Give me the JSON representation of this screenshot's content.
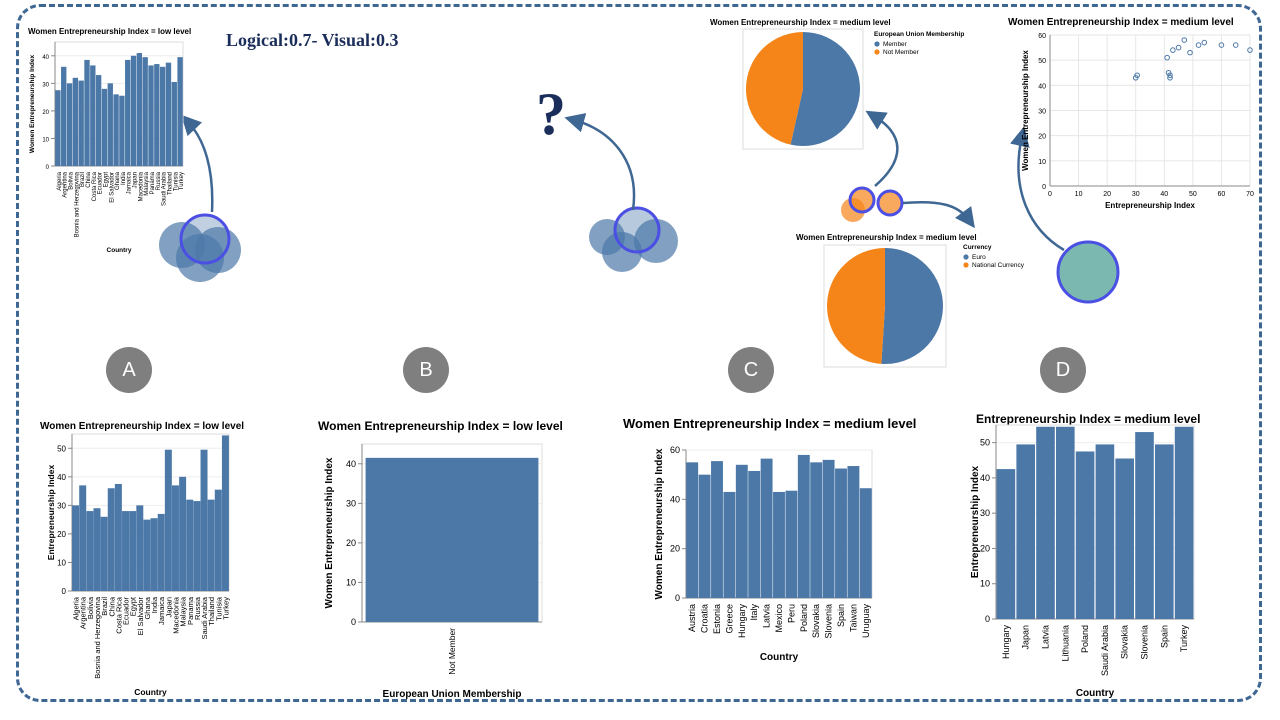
{
  "heading": "Logical:0.7-  Visual:0.3",
  "question_mark": "?",
  "letters": [
    "A",
    "B",
    "C",
    "D"
  ],
  "colors": {
    "bar": "#4c78a8",
    "orange": "#f58518",
    "frame": "#3f6793",
    "arrow": "#3f6793",
    "teal": "#7ab8b0"
  },
  "chart_data": [
    {
      "id": "top_a_bar",
      "type": "bar",
      "title": "Women Entrepreneurship Index = low level",
      "xlabel": "Country",
      "ylabel": "Women Entrepreneurship Index",
      "ylim": [
        0,
        45
      ],
      "yticks": [
        0,
        10,
        20,
        30,
        40
      ],
      "categories": [
        "Algeria",
        "Argentina",
        "Bolivia",
        "Bosnia and Herzegovina",
        "Brazil",
        "China",
        "Costa Rica",
        "Ecuador",
        "Egypt",
        "El Salvador",
        "Ghana",
        "India",
        "Jamaica",
        "Japan",
        "Macedonia",
        "Malaysia",
        "Panama",
        "Russia",
        "Saudi Arabia",
        "Thailand",
        "Tunisia",
        "Turkey"
      ],
      "values": [
        27.5,
        36,
        30,
        32,
        31,
        38.5,
        36.5,
        33,
        28,
        30,
        26,
        25.5,
        38.5,
        40,
        41,
        39.5,
        36.5,
        37,
        36,
        37.5,
        30.5,
        39.5
      ]
    },
    {
      "id": "top_c_pie_eu",
      "type": "pie",
      "title": "Women Entrepreneurship Index = medium level",
      "legend_title": "European Union Membership",
      "labels": [
        "Member",
        "Not Member"
      ],
      "values": [
        53.5,
        46.5
      ],
      "colors": [
        "#4c78a8",
        "#f58518"
      ]
    },
    {
      "id": "top_c_pie_currency",
      "type": "pie",
      "title": "Women Entrepreneurship Index = medium level",
      "legend_title": "Currency",
      "labels": [
        "Euro",
        "National Currency"
      ],
      "values": [
        51,
        49
      ],
      "colors": [
        "#4c78a8",
        "#f58518"
      ]
    },
    {
      "id": "top_d_scatter",
      "type": "scatter",
      "title": "Women Entrepreneurship Index = medium level",
      "xlabel": "Entrepreneurship Index",
      "ylabel": "Women Entrepreneurship Index",
      "xlim": [
        0,
        70
      ],
      "ylim": [
        0,
        60
      ],
      "xticks": [
        0,
        10,
        20,
        30,
        40,
        50,
        60,
        70
      ],
      "yticks": [
        0,
        10,
        20,
        30,
        40,
        50,
        60
      ],
      "points": [
        [
          30,
          43
        ],
        [
          30.5,
          44
        ],
        [
          41,
          51
        ],
        [
          41.5,
          45
        ],
        [
          42,
          44
        ],
        [
          42,
          43
        ],
        [
          43,
          54
        ],
        [
          45,
          55
        ],
        [
          47,
          58
        ],
        [
          49,
          53
        ],
        [
          52,
          56
        ],
        [
          54,
          57
        ],
        [
          60,
          56
        ],
        [
          65,
          56
        ],
        [
          70,
          54
        ]
      ]
    },
    {
      "id": "option_a_bar",
      "type": "bar",
      "title": "Women Entrepreneurship Index = low level",
      "xlabel": "Country",
      "ylabel": "Entrepreneurship Index",
      "ylim": [
        0,
        55
      ],
      "yticks": [
        0,
        10,
        20,
        30,
        40,
        50
      ],
      "categories": [
        "Algeria",
        "Argentina",
        "Bolivia",
        "Bosnia and Herzegovina",
        "Brazil",
        "China",
        "Costa Rica",
        "Ecuador",
        "Egypt",
        "El Salvador",
        "Ghana",
        "India",
        "Jamaica",
        "Japan",
        "Macedonia",
        "Malaysia",
        "Panama",
        "Russia",
        "Saudi Arabia",
        "Thailand",
        "Tunisia",
        "Turkey"
      ],
      "values": [
        30,
        37,
        28,
        29,
        26,
        36,
        37.5,
        28,
        28,
        30,
        25,
        25.5,
        27,
        49.5,
        37,
        40,
        32,
        31.5,
        49.5,
        32,
        35.5,
        54.5
      ]
    },
    {
      "id": "option_b_bar",
      "type": "bar",
      "title": "Women Entrepreneurship Index = low level",
      "xlabel": "European Union Membership",
      "ylabel": "Women Entrepreneurship Index",
      "ylim": [
        0,
        45
      ],
      "yticks": [
        0,
        10,
        20,
        30,
        40
      ],
      "categories": [
        "Not Member"
      ],
      "values": [
        41.5
      ]
    },
    {
      "id": "option_c_bar",
      "type": "bar",
      "title": "Women Entrepreneurship Index = medium level",
      "xlabel": "Country",
      "ylabel": "Women Entrepreneurship Index",
      "ylim": [
        0,
        60
      ],
      "yticks": [
        0,
        20,
        40,
        60
      ],
      "categories": [
        "Austria",
        "Croatia",
        "Estonia",
        "Greece",
        "Hungary",
        "Italy",
        "Latvia",
        "Mexico",
        "Peru",
        "Poland",
        "Slovakia",
        "Slovenia",
        "Spain",
        "Taiwan",
        "Uruguay"
      ],
      "values": [
        55,
        50,
        55.5,
        43,
        54,
        51.5,
        56.5,
        43,
        43.5,
        58,
        55,
        56,
        52.5,
        53.5,
        44.5
      ]
    },
    {
      "id": "option_d_bar",
      "type": "bar",
      "title": "Entrepreneurship Index = medium level",
      "xlabel": "Country",
      "ylabel": "Entrepreneurship Index",
      "ylim": [
        0,
        55
      ],
      "yticks": [
        0,
        10,
        20,
        30,
        40,
        50
      ],
      "categories": [
        "Hungary",
        "Japan",
        "Latvia",
        "Lithuania",
        "Poland",
        "Saudi Arabia",
        "Slovakia",
        "Slovenia",
        "Spain",
        "Turkey"
      ],
      "values": [
        42.5,
        49.5,
        54.5,
        54.5,
        47.5,
        49.5,
        45.5,
        53,
        49.5,
        54.5
      ]
    }
  ]
}
